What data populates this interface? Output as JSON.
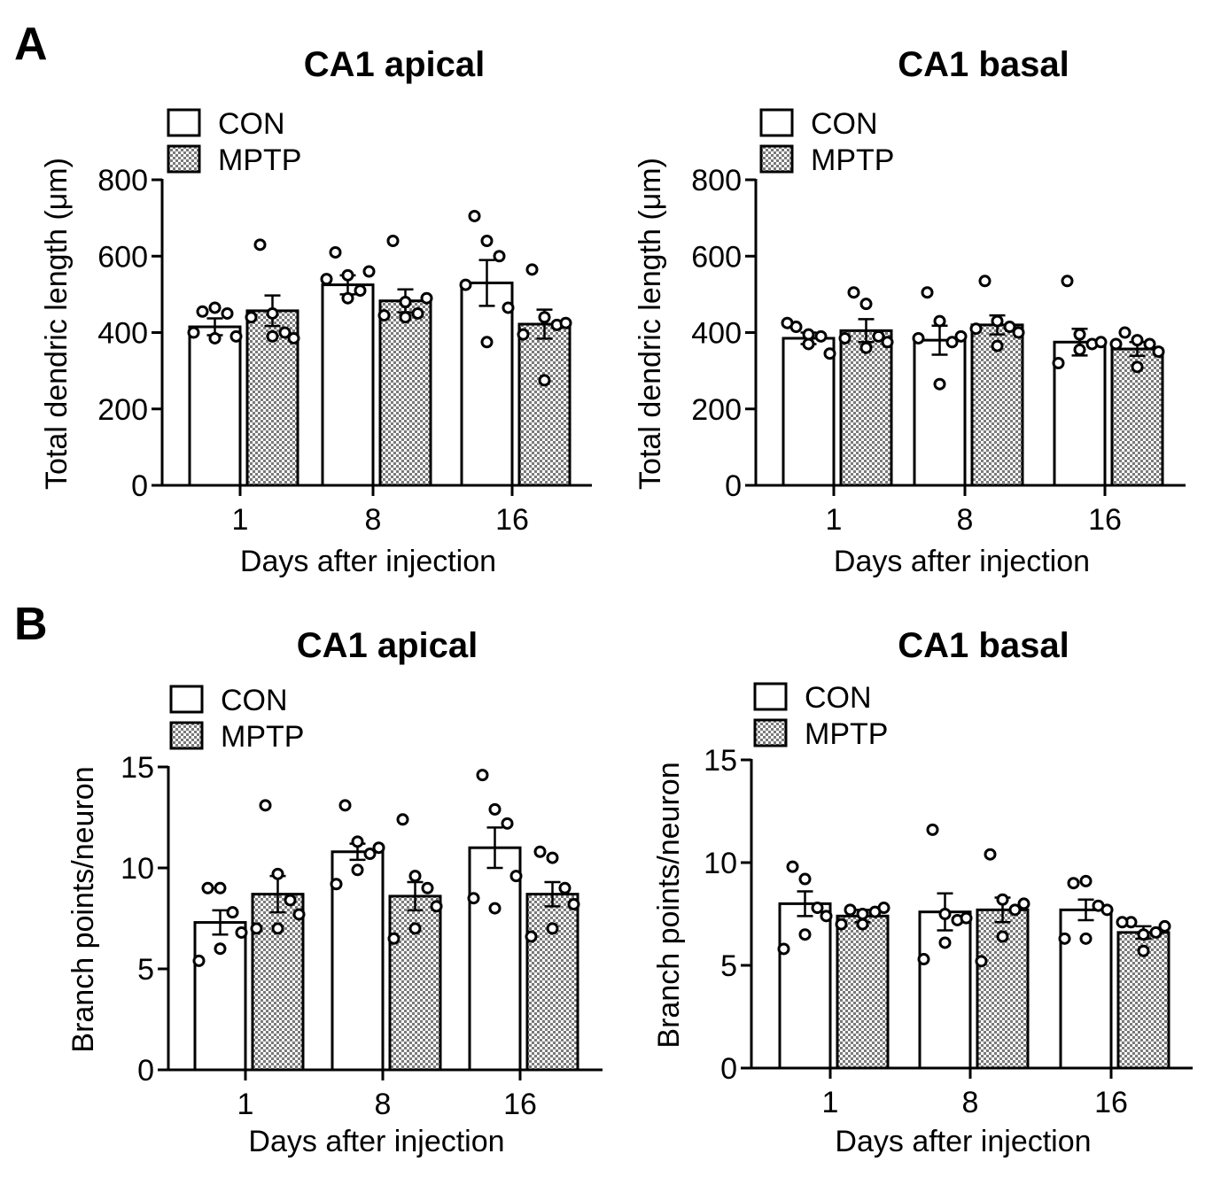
{
  "panels": [
    {
      "letter": "A"
    },
    {
      "letter": "B"
    }
  ],
  "colors": {
    "stroke": "#000000",
    "con_fill": "#ffffff",
    "mptp_fill_light": "#ffffff",
    "mptp_fill_dark": "#7a7a7a"
  },
  "chart_data": [
    {
      "type": "bar",
      "panel": "A",
      "title": "CA1 apical",
      "xlabel": "Days after injection",
      "ylabel": "Total dendric length (μm)",
      "categories": [
        "1",
        "8",
        "16"
      ],
      "ylim": [
        0,
        800
      ],
      "yticks": [
        0,
        200,
        400,
        600,
        800
      ],
      "legend_position": "top-left",
      "series": [
        {
          "name": "CON",
          "pattern": "open",
          "values": [
            415,
            525,
            530
          ],
          "sem": [
            22,
            25,
            60
          ],
          "points": [
            [
              455,
              465,
              450,
              390,
              385,
              400
            ],
            [
              610,
              550,
              510,
              560,
              490,
              540
            ],
            [
              705,
              640,
              600,
              465,
              375,
              525
            ]
          ]
        },
        {
          "name": "MPTP",
          "pattern": "hatched",
          "values": [
            457,
            483,
            422
          ],
          "sem": [
            40,
            30,
            38
          ],
          "points": [
            [
              630,
              450,
              400,
              385,
              390,
              440
            ],
            [
              640,
              480,
              450,
              490,
              440,
              445
            ],
            [
              565,
              440,
              420,
              425,
              275,
              395
            ]
          ]
        }
      ]
    },
    {
      "type": "bar",
      "panel": "A",
      "title": "CA1 basal",
      "xlabel": "Days after injection",
      "ylabel": "Total dendric length (μm)",
      "categories": [
        "1",
        "8",
        "16"
      ],
      "ylim": [
        0,
        800
      ],
      "yticks": [
        0,
        200,
        400,
        600,
        800
      ],
      "legend_position": "top-left",
      "series": [
        {
          "name": "CON",
          "pattern": "open",
          "values": [
            385,
            380,
            375
          ],
          "sem": [
            15,
            38,
            35
          ],
          "points": [
            [
              415,
              395,
              390,
              345,
              370,
              425
            ],
            [
              505,
              430,
              375,
              390,
              265,
              385
            ],
            [
              535,
              395,
              370,
              375,
              355,
              320
            ]
          ]
        },
        {
          "name": "MPTP",
          "pattern": "hatched",
          "values": [
            405,
            420,
            357
          ],
          "sem": [
            30,
            25,
            18
          ],
          "points": [
            [
              505,
              475,
              390,
              375,
              360,
              385
            ],
            [
              535,
              430,
              415,
              400,
              365,
              410
            ],
            [
              400,
              380,
              370,
              350,
              310,
              370
            ]
          ]
        }
      ]
    },
    {
      "type": "bar",
      "panel": "B",
      "title": "CA1 apical",
      "xlabel": "Days after injection",
      "ylabel": "Branch points/neuron",
      "categories": [
        "1",
        "8",
        "16"
      ],
      "ylim": [
        0,
        15
      ],
      "yticks": [
        0,
        5,
        10,
        15
      ],
      "legend_position": "top-left",
      "series": [
        {
          "name": "CON",
          "pattern": "open",
          "values": [
            7.3,
            10.8,
            11.0
          ],
          "sem": [
            0.6,
            0.4,
            1.0
          ],
          "points": [
            [
              9.0,
              9.0,
              7.8,
              6.8,
              6.0,
              5.4
            ],
            [
              13.1,
              11.3,
              10.7,
              11.0,
              9.9,
              9.2
            ],
            [
              14.6,
              12.9,
              12.2,
              9.6,
              8.0,
              8.5
            ]
          ]
        },
        {
          "name": "MPTP",
          "pattern": "hatched",
          "values": [
            8.7,
            8.6,
            8.7
          ],
          "sem": [
            0.9,
            0.7,
            0.6
          ],
          "points": [
            [
              13.1,
              9.7,
              8.4,
              7.7,
              7.0,
              7.0
            ],
            [
              12.4,
              9.6,
              9.0,
              8.1,
              7.0,
              6.5
            ],
            [
              10.8,
              10.5,
              9.0,
              8.2,
              7.0,
              6.6
            ]
          ]
        }
      ]
    },
    {
      "type": "bar",
      "panel": "B",
      "title": "CA1 basal",
      "xlabel": "Days after injection",
      "ylabel": "Branch points/neuron",
      "categories": [
        "1",
        "8",
        "16"
      ],
      "ylim": [
        0,
        15
      ],
      "yticks": [
        0,
        5,
        10,
        15
      ],
      "legend_position": "top-left",
      "series": [
        {
          "name": "CON",
          "pattern": "open",
          "values": [
            8.0,
            7.6,
            7.7
          ],
          "sem": [
            0.6,
            0.9,
            0.5
          ],
          "points": [
            [
              9.8,
              9.2,
              7.8,
              7.4,
              6.5,
              5.8
            ],
            [
              11.6,
              7.5,
              7.2,
              7.3,
              6.1,
              5.3
            ],
            [
              9.0,
              9.1,
              7.9,
              7.7,
              6.3,
              6.3
            ]
          ]
        },
        {
          "name": "MPTP",
          "pattern": "hatched",
          "values": [
            7.4,
            7.7,
            6.6
          ],
          "sem": [
            0.3,
            0.6,
            0.3
          ],
          "points": [
            [
              7.7,
              7.5,
              7.6,
              7.8,
              7.0,
              7.0
            ],
            [
              10.4,
              8.2,
              7.7,
              8.0,
              6.4,
              5.2
            ],
            [
              7.1,
              6.5,
              6.6,
              6.9,
              5.7,
              7.1
            ]
          ]
        }
      ]
    }
  ]
}
